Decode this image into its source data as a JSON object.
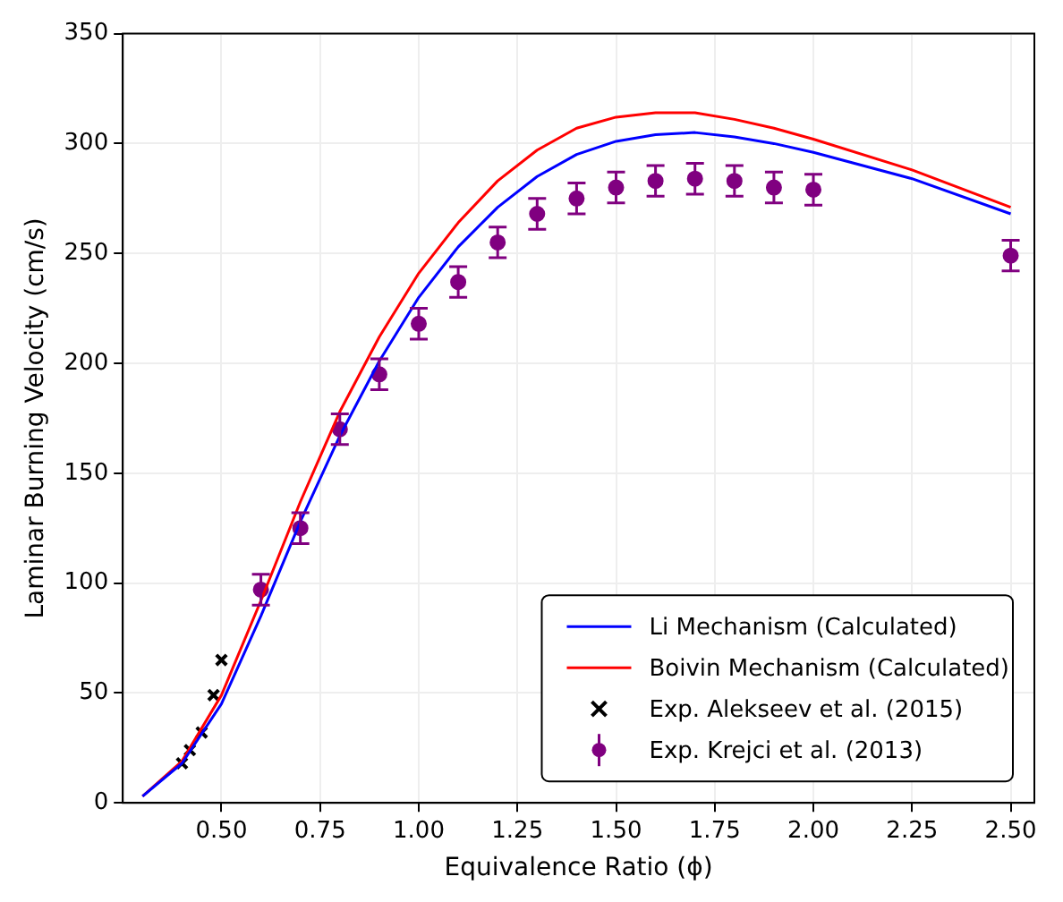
{
  "chart_data": {
    "type": "line",
    "xlabel": "Equivalence Ratio (ϕ)",
    "ylabel": "Laminar Burning Velocity (cm/s)",
    "xlim": [
      0.25,
      2.56
    ],
    "xticks": [
      {
        "value": 0.5,
        "label": "0.50"
      },
      {
        "value": 0.75,
        "label": "0.75"
      },
      {
        "value": 1.0,
        "label": "1.00"
      },
      {
        "value": 1.25,
        "label": "1.25"
      },
      {
        "value": 1.5,
        "label": "1.50"
      },
      {
        "value": 1.75,
        "label": "1.75"
      },
      {
        "value": 2.0,
        "label": "2.00"
      },
      {
        "value": 2.25,
        "label": "2.25"
      },
      {
        "value": 2.5,
        "label": "2.50"
      }
    ],
    "ylim": [
      0,
      350
    ],
    "yticks": [
      0,
      50,
      100,
      150,
      200,
      250,
      300,
      350
    ],
    "grid": true,
    "legend": "bottom right",
    "series": [
      {
        "name": "Li Mechanism (Calculated)",
        "color": "#0000ff",
        "marker": "none",
        "x": [
          0.3,
          0.4,
          0.5,
          0.6,
          0.7,
          0.8,
          0.9,
          1.0,
          1.1,
          1.2,
          1.3,
          1.4,
          1.5,
          1.6,
          1.7,
          1.8,
          1.9,
          2.0,
          2.25,
          2.5
        ],
        "values": [
          3,
          18,
          45,
          85,
          128,
          167,
          201,
          230,
          253,
          271,
          285,
          295,
          301,
          304,
          305,
          303,
          300,
          296,
          284,
          268
        ]
      },
      {
        "name": "Boivin Mechanism (Calculated)",
        "color": "#ff0000",
        "marker": "none",
        "x": [
          0.3,
          0.4,
          0.5,
          0.6,
          0.7,
          0.8,
          0.9,
          1.0,
          1.1,
          1.2,
          1.3,
          1.4,
          1.5,
          1.6,
          1.7,
          1.8,
          1.9,
          2.0,
          2.25,
          2.5
        ],
        "values": [
          3,
          19,
          49,
          92,
          137,
          178,
          212,
          241,
          264,
          283,
          297,
          307,
          312,
          314,
          314,
          311,
          307,
          302,
          288,
          271
        ]
      },
      {
        "name": "Exp. Alekseev et al. (2015)",
        "type": "scatter",
        "color": "#000000",
        "marker": "cross",
        "x": [
          0.4,
          0.42,
          0.45,
          0.48,
          0.5
        ],
        "values": [
          18,
          24,
          32,
          49,
          65
        ]
      },
      {
        "name": "Exp. Krejci et al. (2013)",
        "type": "scatter",
        "color": "#800080",
        "marker": "circle",
        "x": [
          0.6,
          0.7,
          0.8,
          0.9,
          1.0,
          1.1,
          1.2,
          1.3,
          1.4,
          1.5,
          1.6,
          1.7,
          1.8,
          1.9,
          2.0,
          2.5
        ],
        "values": [
          97,
          125,
          170,
          195,
          218,
          237,
          255,
          268,
          275,
          280,
          283,
          284,
          283,
          280,
          279,
          249
        ],
        "errors": [
          7,
          7,
          7,
          7,
          7,
          7,
          7,
          7,
          7,
          7,
          7,
          7,
          7,
          7,
          7,
          7
        ]
      }
    ]
  }
}
